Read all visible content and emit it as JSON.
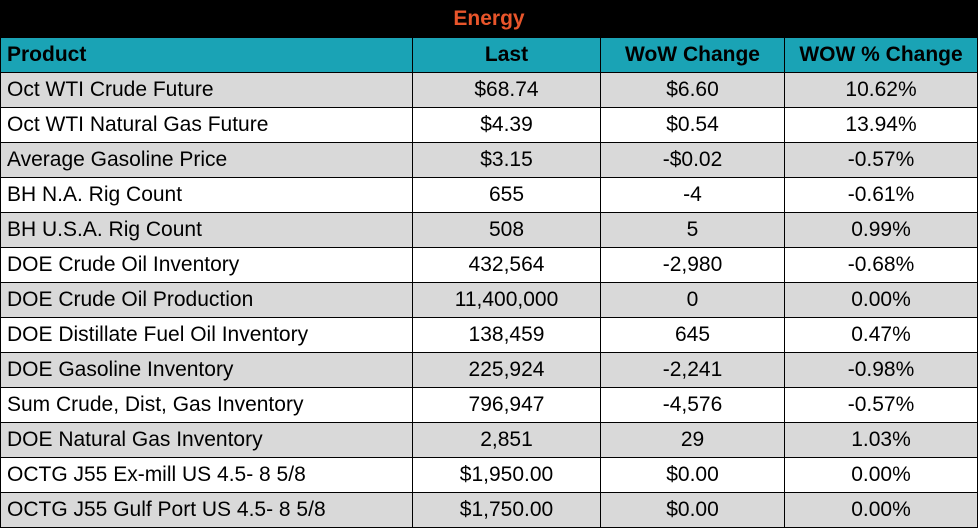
{
  "title": "Energy",
  "colors": {
    "title_bg": "#000000",
    "title_text": "#e8552b",
    "header_bg": "#1aa3b5",
    "shaded_row_bg": "#d9d9d9",
    "plain_row_bg": "#ffffff"
  },
  "columns": [
    "Product",
    "Last",
    "WoW Change",
    "WOW % Change"
  ],
  "rows": [
    [
      "Oct WTI Crude Future",
      "$68.74",
      "$6.60",
      "10.62%"
    ],
    [
      "Oct WTI Natural Gas Future",
      "$4.39",
      "$0.54",
      "13.94%"
    ],
    [
      "Average Gasoline Price",
      "$3.15",
      "-$0.02",
      "-0.57%"
    ],
    [
      "BH N.A. Rig Count",
      "655",
      "-4",
      "-0.61%"
    ],
    [
      "BH U.S.A. Rig Count",
      "508",
      "5",
      "0.99%"
    ],
    [
      "DOE Crude Oil Inventory",
      "432,564",
      "-2,980",
      "-0.68%"
    ],
    [
      "DOE Crude Oil Production",
      "11,400,000",
      "0",
      "0.00%"
    ],
    [
      "DOE Distillate Fuel Oil Inventory",
      "138,459",
      "645",
      "0.47%"
    ],
    [
      "DOE Gasoline Inventory",
      "225,924",
      "-2,241",
      "-0.98%"
    ],
    [
      "Sum Crude, Dist, Gas Inventory",
      "796,947",
      "-4,576",
      "-0.57%"
    ],
    [
      "DOE Natural Gas Inventory",
      "2,851",
      "29",
      "1.03%"
    ],
    [
      "OCTG J55 Ex-mill US 4.5- 8 5/8",
      "$1,950.00",
      "$0.00",
      "0.00%"
    ],
    [
      "OCTG J55 Gulf Port US 4.5- 8 5/8",
      "$1,750.00",
      "$0.00",
      "0.00%"
    ]
  ]
}
